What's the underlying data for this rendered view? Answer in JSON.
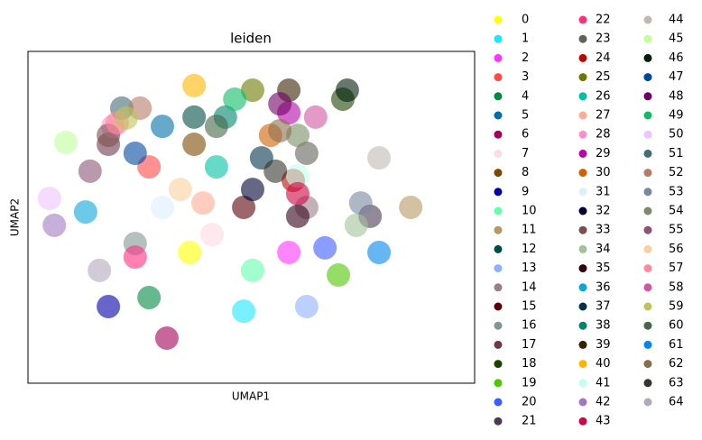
{
  "chart_data": {
    "type": "scatter",
    "title": "leiden",
    "x_label": "UMAP1",
    "y_label": "UMAP2",
    "xlim": [
      0,
      100
    ],
    "ylim": [
      0,
      100
    ],
    "series": [
      {
        "name": "0",
        "color": "#FFFF00",
        "x": [
          36.2
        ],
        "y": [
          39.4
        ]
      },
      {
        "name": "1",
        "color": "#1CE6FF",
        "x": [
          48.3
        ],
        "y": [
          21.7
        ]
      },
      {
        "name": "2",
        "color": "#FF34FF",
        "x": [
          58.4
        ],
        "y": [
          39.4
        ]
      },
      {
        "name": "3",
        "color": "#FF4A46",
        "x": [
          27.1
        ],
        "y": [
          65.2
        ]
      },
      {
        "name": "4",
        "color": "#008941",
        "x": [
          27.1
        ],
        "y": [
          25.8
        ]
      },
      {
        "name": "5",
        "color": "#006FA6",
        "x": [
          30.1
        ],
        "y": [
          77.4
        ]
      },
      {
        "name": "6",
        "color": "#A30059",
        "x": [
          31.1
        ],
        "y": [
          13.6
        ]
      },
      {
        "name": "7",
        "color": "#FFDBE5",
        "x": [
          41.2
        ],
        "y": [
          44.8
        ]
      },
      {
        "name": "8",
        "color": "#7A4900",
        "x": [
          37.2
        ],
        "y": [
          72.0
        ]
      },
      {
        "name": "9",
        "color": "#0000A6",
        "x": [
          18.0
        ],
        "y": [
          23.1
        ]
      },
      {
        "name": "10",
        "color": "#63FFAC",
        "x": [
          50.3
        ],
        "y": [
          34.0
        ]
      },
      {
        "name": "11",
        "color": "#B79762",
        "x": [
          85.7
        ],
        "y": [
          53.0
        ]
      },
      {
        "name": "12",
        "color": "#004D43",
        "x": [
          37.2
        ],
        "y": [
          80.2
        ]
      },
      {
        "name": "13",
        "color": "#8FB0FF",
        "x": [
          62.4
        ],
        "y": [
          23.1
        ]
      },
      {
        "name": "14",
        "color": "#997D87",
        "x": [
          62.4
        ],
        "y": [
          53.0
        ]
      },
      {
        "name": "15",
        "color": "#5A0007",
        "x": [
          48.3
        ],
        "y": [
          53.0
        ]
      },
      {
        "name": "16",
        "color": "#809693",
        "x": [
          24.0
        ],
        "y": [
          42.1
        ]
      },
      {
        "name": "17",
        "color": "#6A3A4C",
        "x": [
          18.0
        ],
        "y": [
          72.0
        ]
      },
      {
        "name": "18",
        "color": "#1B4400",
        "x": [
          70.5
        ],
        "y": [
          85.6
        ]
      },
      {
        "name": "19",
        "color": "#4FC601",
        "x": [
          69.5
        ],
        "y": [
          32.6
        ]
      },
      {
        "name": "20",
        "color": "#3B5DFF",
        "x": [
          66.5
        ],
        "y": [
          40.8
        ]
      },
      {
        "name": "21",
        "color": "#4A3B53",
        "x": [
          76.6
        ],
        "y": [
          50.3
        ]
      },
      {
        "name": "22",
        "color": "#FF2F80",
        "x": [
          24.0
        ],
        "y": [
          38.0
        ]
      },
      {
        "name": "23",
        "color": "#61615A",
        "x": [
          62.4
        ],
        "y": [
          69.3
        ]
      },
      {
        "name": "24",
        "color": "#BA0900",
        "x": [
          59.4
        ],
        "y": [
          61.1
        ]
      },
      {
        "name": "25",
        "color": "#6B7900",
        "x": [
          50.3
        ],
        "y": [
          88.3
        ]
      },
      {
        "name": "26",
        "color": "#00C2A0",
        "x": [
          42.2
        ],
        "y": [
          65.2
        ]
      },
      {
        "name": "27",
        "color": "#FFAA92",
        "x": [
          39.2
        ],
        "y": [
          54.3
        ]
      },
      {
        "name": "28",
        "color": "#FF90C9",
        "x": [
          19.0
        ],
        "y": [
          77.4
        ]
      },
      {
        "name": "29",
        "color": "#B903AA",
        "x": [
          58.4
        ],
        "y": [
          81.5
        ]
      },
      {
        "name": "30",
        "color": "#D16100",
        "x": [
          54.3
        ],
        "y": [
          74.7
        ]
      },
      {
        "name": "31",
        "color": "#DDEFFF",
        "x": [
          30.1
        ],
        "y": [
          53.0
        ]
      },
      {
        "name": "32",
        "color": "#000035",
        "x": [
          50.3
        ],
        "y": [
          58.4
        ]
      },
      {
        "name": "33",
        "color": "#7B4F4B",
        "x": [
          18.0
        ],
        "y": [
          74.7
        ]
      },
      {
        "name": "34",
        "color": "#A1C299",
        "x": [
          73.5
        ],
        "y": [
          47.6
        ]
      },
      {
        "name": "35",
        "color": "#300018",
        "x": [
          60.4
        ],
        "y": [
          50.3
        ]
      },
      {
        "name": "36",
        "color": "#0AA6D8",
        "x": [
          12.9
        ],
        "y": [
          51.6
        ]
      },
      {
        "name": "37",
        "color": "#013349",
        "x": [
          52.3
        ],
        "y": [
          67.9
        ]
      },
      {
        "name": "38",
        "color": "#00846F",
        "x": [
          44.2
        ],
        "y": [
          80.2
        ]
      },
      {
        "name": "39",
        "color": "#372101",
        "x": [
          58.4
        ],
        "y": [
          88.3
        ]
      },
      {
        "name": "40",
        "color": "#FFB500",
        "x": [
          37.2
        ],
        "y": [
          89.7
        ]
      },
      {
        "name": "41",
        "color": "#C2FFED",
        "x": [
          60.4
        ],
        "y": [
          62.5
        ]
      },
      {
        "name": "42",
        "color": "#A079BF",
        "x": [
          5.9
        ],
        "y": [
          47.6
        ]
      },
      {
        "name": "43",
        "color": "#CC0744",
        "x": [
          60.4
        ],
        "y": [
          57.1
        ]
      },
      {
        "name": "44",
        "color": "#C0B9B2",
        "x": [
          78.6
        ],
        "y": [
          67.9
        ]
      },
      {
        "name": "45",
        "color": "#C2FF99",
        "x": [
          8.5
        ],
        "y": [
          72.6
        ]
      },
      {
        "name": "46",
        "color": "#001E09",
        "x": [
          71.5
        ],
        "y": [
          88.3
        ]
      },
      {
        "name": "47",
        "color": "#00489C",
        "x": [
          24.0
        ],
        "y": [
          69.3
        ]
      },
      {
        "name": "48",
        "color": "#6F0062",
        "x": [
          56.4
        ],
        "y": [
          84.2
        ]
      },
      {
        "name": "49",
        "color": "#0CBD66",
        "x": [
          46.3
        ],
        "y": [
          85.6
        ]
      },
      {
        "name": "50",
        "color": "#EEC3FF",
        "x": [
          4.8
        ],
        "y": [
          55.7
        ]
      },
      {
        "name": "51",
        "color": "#456D75",
        "x": [
          21.0
        ],
        "y": [
          82.9
        ]
      },
      {
        "name": "52",
        "color": "#B77B68",
        "x": [
          25.1
        ],
        "y": [
          82.9
        ]
      },
      {
        "name": "53",
        "color": "#7A87A1",
        "x": [
          74.5
        ],
        "y": [
          54.3
        ]
      },
      {
        "name": "54",
        "color": "#788D66",
        "x": [
          60.4
        ],
        "y": [
          74.7
        ]
      },
      {
        "name": "55",
        "color": "#885578",
        "x": [
          13.9
        ],
        "y": [
          63.9
        ]
      },
      {
        "name": "56",
        "color": "#FAD09E",
        "x": [
          34.1
        ],
        "y": [
          58.4
        ]
      },
      {
        "name": "57",
        "color": "#FF8A9A",
        "x": [
          20.0
        ],
        "y": [
          78.5
        ]
      },
      {
        "name": "58",
        "color": "#D157A0",
        "x": [
          64.4
        ],
        "y": [
          80.2
        ]
      },
      {
        "name": "59",
        "color": "#BEC459",
        "x": [
          22.0
        ],
        "y": [
          79.9
        ]
      },
      {
        "name": "60",
        "color": "#456648",
        "x": [
          42.2
        ],
        "y": [
          77.4
        ]
      },
      {
        "name": "61",
        "color": "#0086ED",
        "x": [
          78.6
        ],
        "y": [
          39.4
        ]
      },
      {
        "name": "62",
        "color": "#886F4C",
        "x": [
          56.4
        ],
        "y": [
          76.1
        ]
      },
      {
        "name": "63",
        "color": "#34362D",
        "x": [
          55.4
        ],
        "y": [
          63.9
        ]
      },
      {
        "name": "64",
        "color": "#B4A8BD",
        "x": [
          16.0
        ],
        "y": [
          34.0
        ]
      }
    ]
  }
}
